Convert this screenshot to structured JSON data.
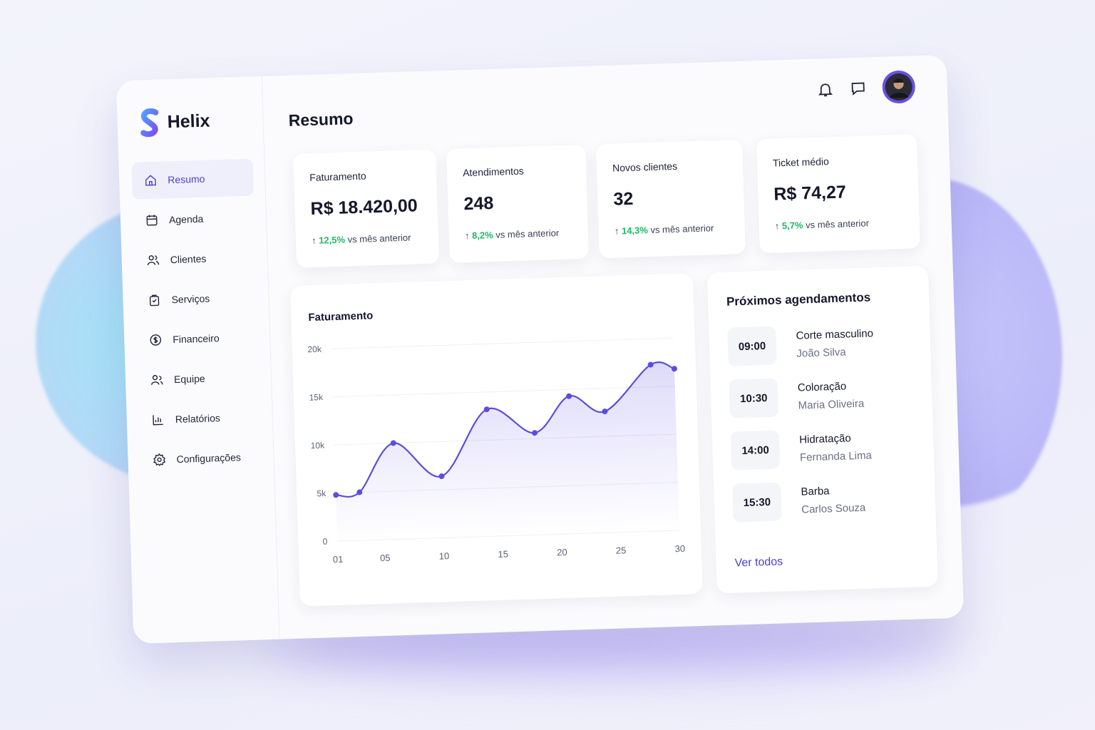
{
  "brand": "Helix",
  "nav": [
    "Resumo",
    "Agenda",
    "Clientes",
    "Serviços",
    "Financeiro",
    "Equipe",
    "Relatórios",
    "Configurações"
  ],
  "page_title": "Resumo",
  "kpis": [
    {
      "label": "Faturamento",
      "value": "R$ 18.420,00",
      "change": "12,5%",
      "note": "vs mês anterior"
    },
    {
      "label": "Atendimentos",
      "value": "248",
      "change": "8,2%",
      "note": "vs mês anterior"
    },
    {
      "label": "Novos clientes",
      "value": "32",
      "change": "14,3%",
      "note": "vs mês anterior"
    },
    {
      "label": "Ticket médio",
      "value": "R$ 74,27",
      "change": "5,7%",
      "note": "vs mês anterior"
    }
  ],
  "chart_data": {
    "type": "line",
    "title": "Faturamento",
    "x": [
      1,
      3,
      6,
      10,
      14,
      18,
      21,
      24,
      28,
      30
    ],
    "series": [
      {
        "color": "#5b4de0",
        "values": [
          4800,
          5000,
          10000,
          6400,
          13200,
          10600,
          14300,
          12600,
          17300,
          16800
        ]
      }
    ],
    "xlim": [
      1,
      30
    ],
    "xticks": [
      {
        "value": 1,
        "label": "01"
      },
      {
        "value": 5,
        "label": "05"
      },
      10,
      15,
      20,
      25,
      30
    ],
    "ylim": [
      0,
      20000
    ],
    "yticks": [
      0,
      {
        "value": 5000,
        "label": "5k"
      },
      {
        "value": 10000,
        "label": "10k"
      },
      {
        "value": 15000,
        "label": "15k"
      },
      {
        "value": 20000,
        "label": "20k"
      }
    ],
    "grid": true
  },
  "appointments": {
    "title": "Próximos agendamentos",
    "items": [
      {
        "time": "09:00",
        "service": "Corte masculino",
        "client": "João Silva"
      },
      {
        "time": "10:30",
        "service": "Coloração",
        "client": "Maria Oliveira"
      },
      {
        "time": "14:00",
        "service": "Hidratação",
        "client": "Fernanda Lima"
      },
      {
        "time": "15:30",
        "service": "Barba",
        "client": "Carlos Souza"
      }
    ],
    "link": "Ver todos"
  }
}
